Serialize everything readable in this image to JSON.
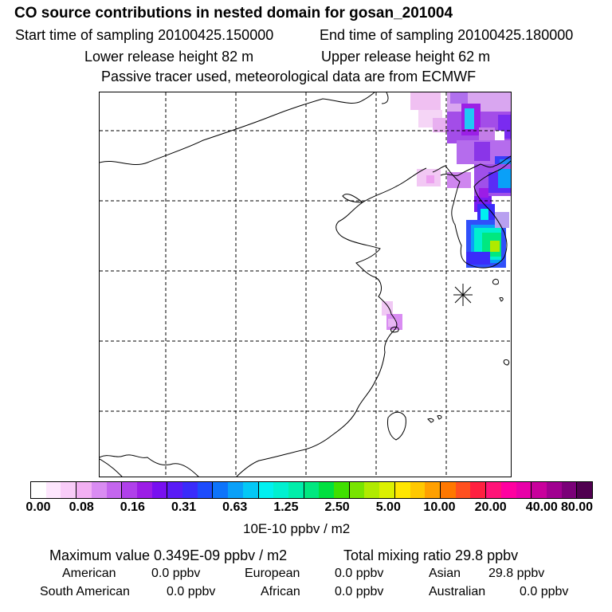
{
  "header": {
    "title": "CO  source contributions in nested domain for gosan_201004",
    "start_time": "Start time of sampling 20100425.150000",
    "end_time": "End time of sampling 20100425.180000",
    "lower_height": "Lower release height   82 m",
    "upper_height": "Upper release height   62 m",
    "tracer_note": "Passive tracer used, meteorological data are from ECMWF"
  },
  "colorbar": {
    "colors": [
      "#ffffff",
      "#fde6fd",
      "#f8ccf8",
      "#f2b0f3",
      "#d98cf2",
      "#c466ee",
      "#b040ea",
      "#9c1de6",
      "#7810f0",
      "#5a1cf6",
      "#3a2cfa",
      "#1e4cfc",
      "#0e74fa",
      "#0aa0f8",
      "#04c8f6",
      "#00f0f0",
      "#00f0d0",
      "#00eeaa",
      "#00e880",
      "#00e040",
      "#40e000",
      "#78e400",
      "#b0ea00",
      "#dcf000",
      "#ffe600",
      "#ffc800",
      "#ffa000",
      "#ff7800",
      "#ff5020",
      "#ff2040",
      "#ff1478",
      "#ff00a0",
      "#e800a8",
      "#c8009c",
      "#a00090",
      "#7a0078",
      "#500050"
    ],
    "ticks": [
      "0.00",
      "0.08",
      "0.16",
      "0.31",
      "0.63",
      "1.25",
      "2.50",
      "5.00",
      "10.00",
      "20.00",
      "40.00",
      "80.00"
    ],
    "unit": "10E-10 ppbv / m2"
  },
  "footer": {
    "max_value": "Maximum value  0.349E-09 ppbv / m2",
    "total_mixing": "Total mixing ratio       29.8 ppbv",
    "regions": [
      {
        "label": "American",
        "value": "0.0 ppbv"
      },
      {
        "label": "European",
        "value": "0.0 ppbv"
      },
      {
        "label": "Asian",
        "value": "29.8 ppbv"
      },
      {
        "label": "South American",
        "value": "0.0 ppbv"
      },
      {
        "label": "African",
        "value": "0.0 ppbv"
      },
      {
        "label": "Australian",
        "value": "0.0 ppbv"
      }
    ]
  }
}
